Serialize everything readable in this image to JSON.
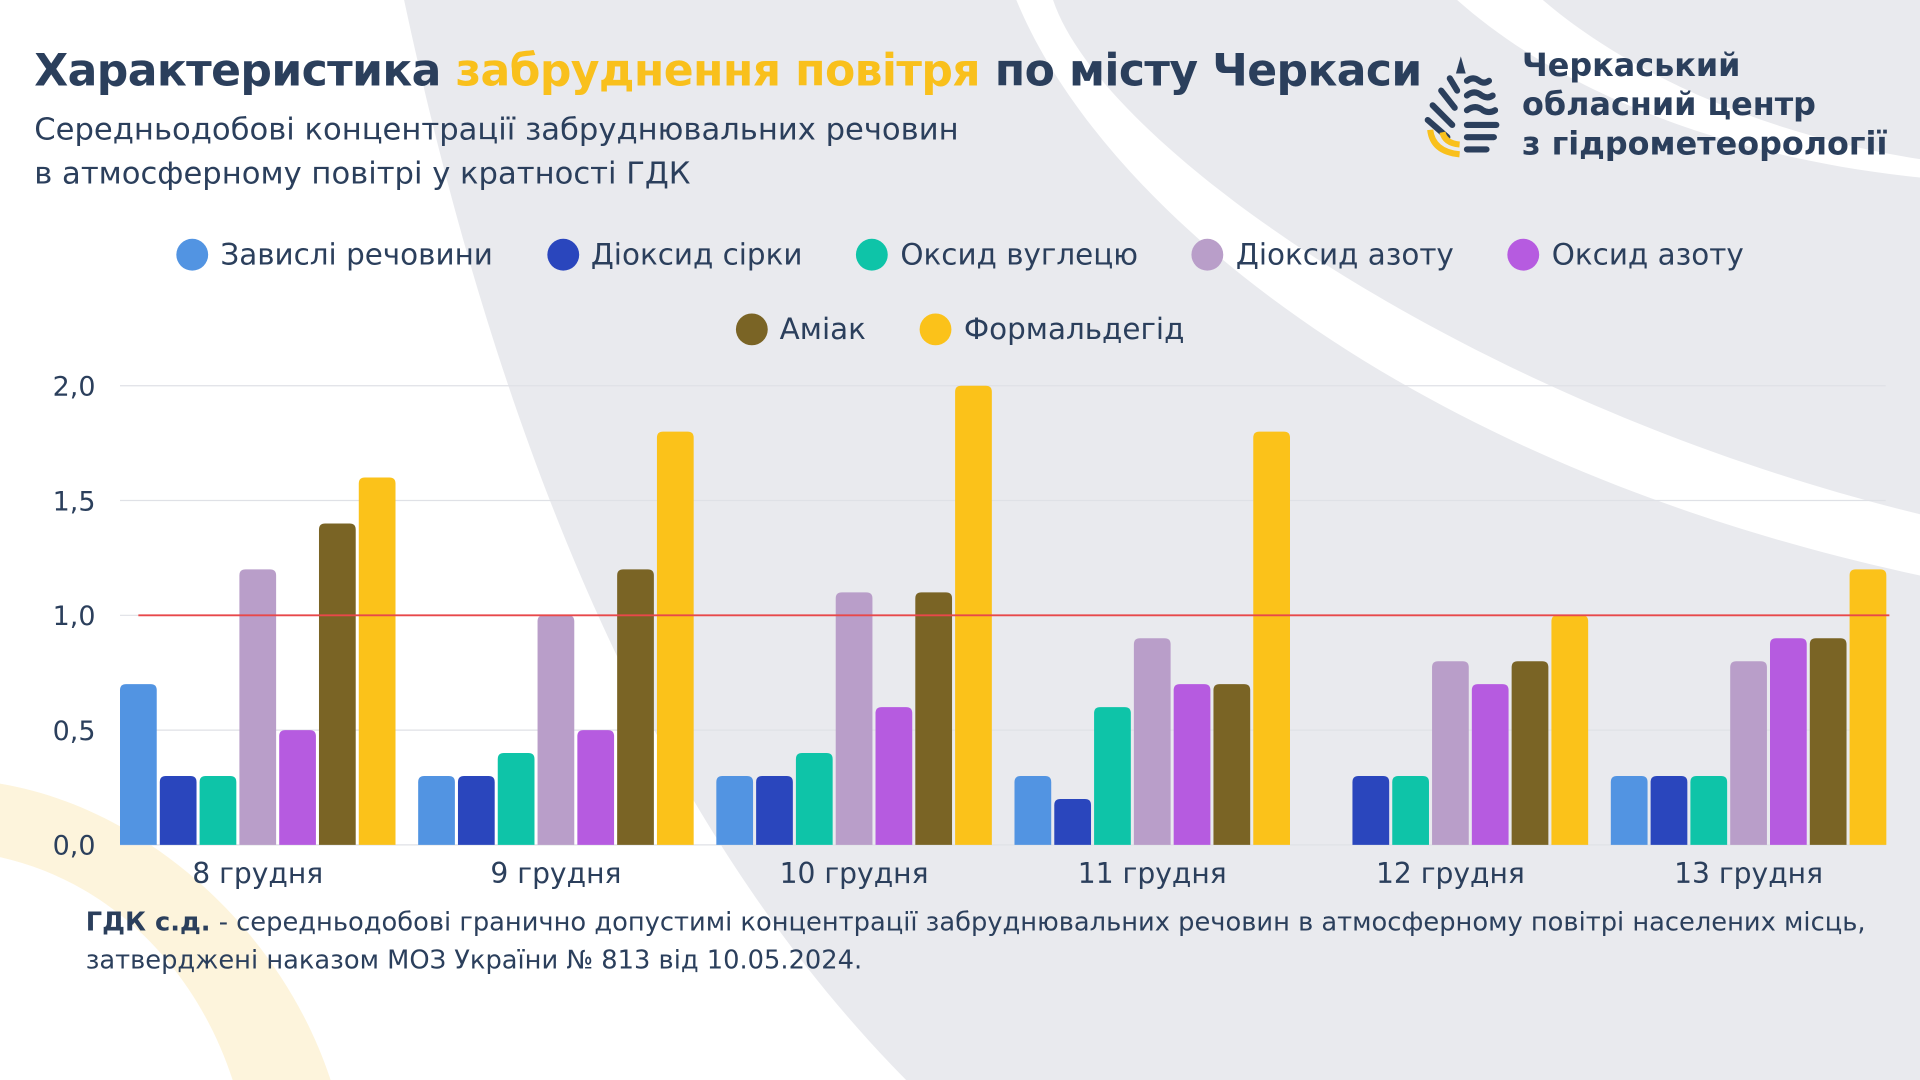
{
  "header": {
    "title_part1": "Характеристика ",
    "title_highlight": "забруднення повітря",
    "title_part2": " по місту Черкаси",
    "subtitle_line1": "Середньодобові концентрації забруднювальних речовин",
    "subtitle_line2": "в атмосферному повітрі у кратності ГДК"
  },
  "organization": {
    "line1": "Черкаський",
    "line2": "обласний центр",
    "line3": "з гідрометеорології",
    "logo_icon": "drop-waves-logo"
  },
  "colors": {
    "text": "#2b3f5c",
    "accent": "#f9c01c",
    "limit_line": "#e8484a",
    "background_shape": "#e9eaee"
  },
  "chart_data": {
    "type": "bar",
    "categories": [
      "8 грудня",
      "9 грудня",
      "10 грудня",
      "11 грудня",
      "12 грудня",
      "13 грудня"
    ],
    "series": [
      {
        "name": "Завислі речовини",
        "color": "#5294e2",
        "values": [
          0.7,
          0.3,
          0.3,
          0.3,
          null,
          0.3
        ]
      },
      {
        "name": "Діоксид сірки",
        "color": "#2a46bd",
        "values": [
          0.3,
          0.3,
          0.3,
          0.2,
          0.3,
          0.3
        ]
      },
      {
        "name": "Оксид вуглецю",
        "color": "#0ec4a8",
        "values": [
          0.3,
          0.4,
          0.4,
          0.6,
          0.3,
          0.3
        ]
      },
      {
        "name": "Діоксид азоту",
        "color": "#b99ec9",
        "values": [
          1.2,
          1.0,
          1.1,
          0.9,
          0.8,
          0.8
        ]
      },
      {
        "name": "Оксид азоту",
        "color": "#b65be0",
        "values": [
          0.5,
          0.5,
          0.6,
          0.7,
          0.7,
          0.9
        ]
      },
      {
        "name": "Аміак",
        "color": "#7a6425",
        "values": [
          1.4,
          1.2,
          1.1,
          0.7,
          0.8,
          0.9
        ]
      },
      {
        "name": "Формальдегід",
        "color": "#fbc21a",
        "values": [
          1.6,
          1.8,
          2.0,
          1.8,
          1.0,
          1.2
        ]
      }
    ],
    "yticks": [
      "0,0",
      "0,5",
      "1,0",
      "1,5",
      "2,0"
    ],
    "ytick_values": [
      0,
      0.5,
      1.0,
      1.5,
      2.0
    ],
    "ylim": [
      0,
      2.0
    ],
    "reference_line": 1.0,
    "grid": true,
    "legend_placement": "top"
  },
  "footnote": {
    "term": "ГДК с.д.",
    "text": " - середньодобові гранично допустимі концентрації забруднювальних речовин в атмосферному повітрі населених місць, затверджені наказом МОЗ України № 813 від 10.05.2024."
  }
}
